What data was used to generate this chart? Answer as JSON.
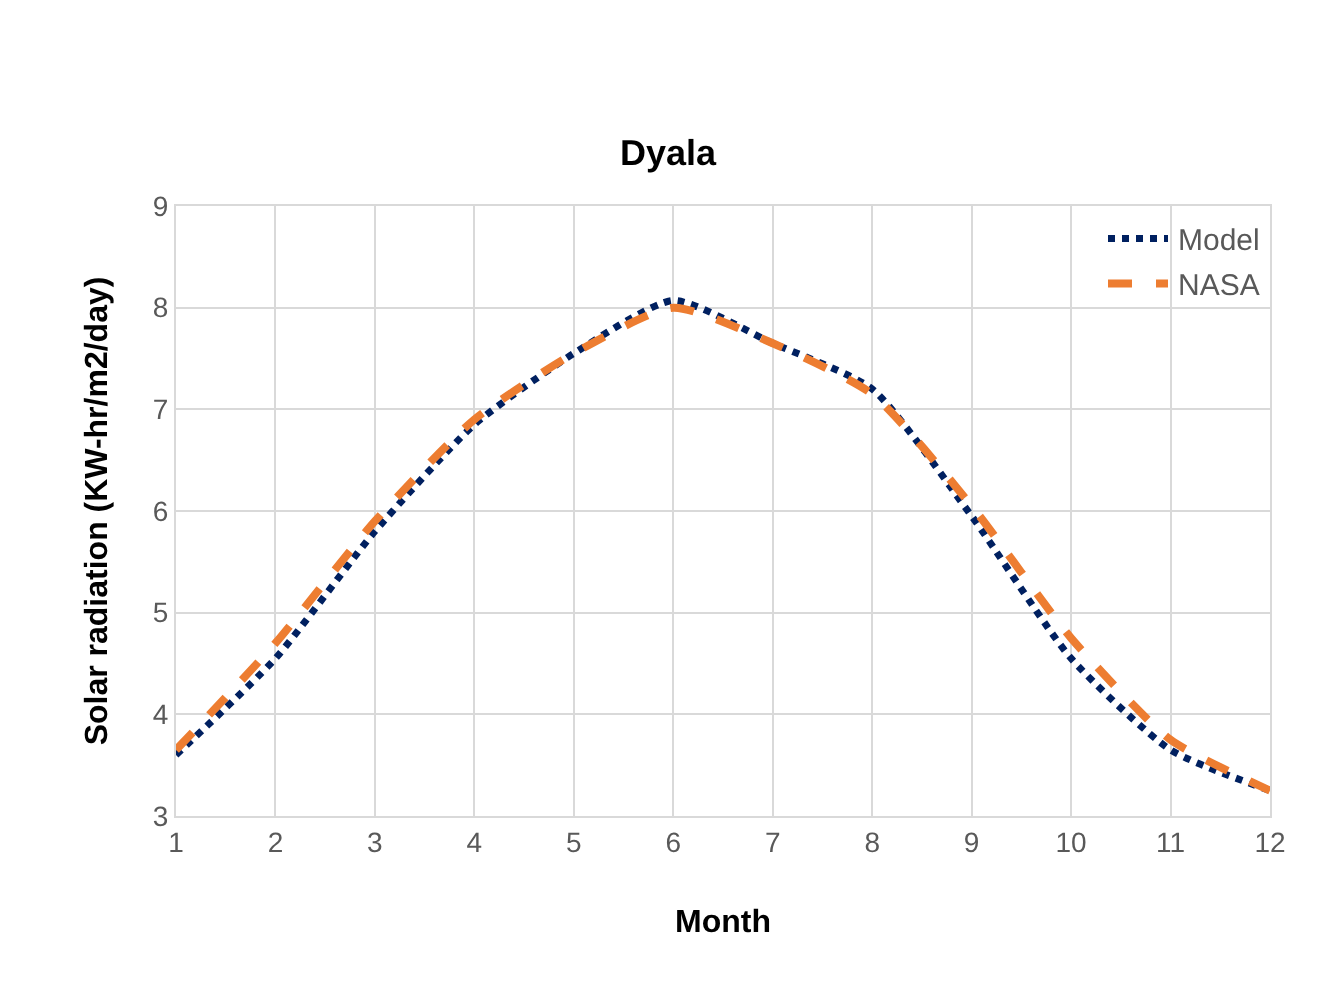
{
  "chart_data": {
    "type": "line",
    "title": "Dyala",
    "xlabel": "Month",
    "ylabel": "Solar radiation (KW-hr/m2/day)",
    "x": [
      1,
      2,
      3,
      4,
      5,
      6,
      7,
      8,
      9,
      10,
      11,
      12
    ],
    "series": [
      {
        "name": "Model",
        "color": "#002060",
        "line_style": "dotted",
        "values": [
          3.6,
          4.55,
          5.8,
          6.85,
          7.55,
          8.07,
          7.65,
          7.2,
          5.95,
          4.55,
          3.65,
          3.25
        ]
      },
      {
        "name": "NASA",
        "color": "#ed7d31",
        "line_style": "dashed",
        "values": [
          3.65,
          4.7,
          5.9,
          6.9,
          7.55,
          8.0,
          7.65,
          7.15,
          6.05,
          4.75,
          3.75,
          3.25
        ]
      }
    ],
    "xlim": [
      1,
      12
    ],
    "xticks": [
      1,
      2,
      3,
      4,
      5,
      6,
      7,
      8,
      9,
      10,
      11,
      12
    ],
    "ylim": [
      3,
      9
    ],
    "yticks": [
      3,
      4,
      5,
      6,
      7,
      8,
      9
    ],
    "grid": true,
    "legend": "top right",
    "marker": "none"
  }
}
